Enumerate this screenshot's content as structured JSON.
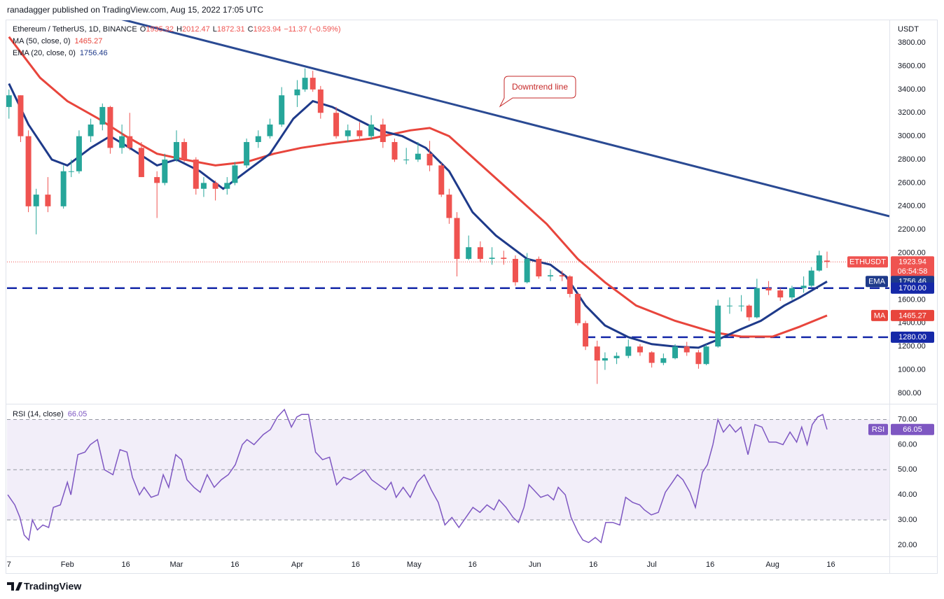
{
  "header": {
    "text": "ranadagger published on TradingView.com, Aug 15, 2022 17:05 UTC"
  },
  "footer": {
    "brand": "TradingView"
  },
  "chart_data": [
    {
      "type": "candlestick",
      "title": "Ethereum / TetherUS, 1D, BINANCE",
      "currency": "USDT",
      "legend_labels": {
        "open": "O",
        "high": "H",
        "low": "L",
        "close": "C"
      },
      "change": "−11.37 (−0.59%)",
      "symbol_tag": "ETHUSDT",
      "countdown": "06:54:58",
      "up_color": "#26a69a",
      "down_color": "#ef5350",
      "xlim": [
        16.5,
        243
      ],
      "ylim": [
        710,
        3998
      ],
      "grid": false,
      "yticks": [
        {
          "value": 800,
          "label": "800.00"
        },
        {
          "value": 1000,
          "label": "1000.00"
        },
        {
          "value": 1200,
          "label": "1200.00"
        },
        {
          "value": 1400,
          "label": "1400.00"
        },
        {
          "value": 1600,
          "label": "1600.00"
        },
        {
          "value": 1800,
          "label": "1800.00"
        },
        {
          "value": 2000,
          "label": "2000.00"
        },
        {
          "value": 2200,
          "label": "2200.00"
        },
        {
          "value": 2400,
          "label": "2400.00"
        },
        {
          "value": 2600,
          "label": "2600.00"
        },
        {
          "value": 2800,
          "label": "2800.00"
        },
        {
          "value": 3000,
          "label": "3000.00"
        },
        {
          "value": 3200,
          "label": "3200.00"
        },
        {
          "value": 3400,
          "label": "3400.00"
        },
        {
          "value": 3600,
          "label": "3600.00"
        },
        {
          "value": 3800,
          "label": "3800.00"
        }
      ],
      "x": [
        17,
        20,
        22,
        24,
        27,
        31,
        33,
        35,
        38,
        41,
        43,
        46,
        48,
        51,
        55,
        57,
        60,
        62,
        65,
        67,
        70,
        73,
        75,
        78,
        81,
        84,
        87,
        91,
        93,
        95,
        97,
        101,
        104,
        107,
        110,
        113,
        116,
        119,
        122,
        125,
        128,
        130,
        132,
        135,
        138,
        141,
        144,
        147,
        150,
        153,
        156,
        159,
        161,
        163,
        165,
        168,
        170,
        173,
        176,
        179,
        182,
        185,
        188,
        191,
        194,
        196,
        199,
        202,
        205,
        207,
        209,
        212,
        215,
        218,
        221,
        223,
        225,
        227
      ],
      "open": [
        3250,
        3350,
        3000,
        2400,
        2500,
        2400,
        2700,
        2700,
        3000,
        3100,
        3250,
        2900,
        3000,
        2900,
        2650,
        2600,
        2800,
        2950,
        2800,
        2550,
        2600,
        2550,
        2600,
        2750,
        2950,
        3000,
        3100,
        3350,
        3400,
        3500,
        3400,
        3200,
        3000,
        3050,
        3000,
        3100,
        2950,
        2800,
        2800,
        2850,
        2750,
        2500,
        2300,
        1950,
        2050,
        1950,
        1960,
        1950,
        1750,
        1950,
        1800,
        1810,
        1800,
        1650,
        1400,
        1200,
        1080,
        1100,
        1120,
        1200,
        1150,
        1060,
        1100,
        1200,
        1150,
        1050,
        1200,
        1550,
        1550,
        1550,
        1450,
        1700,
        1680,
        1620,
        1700,
        1720,
        1850,
        1935.32
      ],
      "high": [
        3400,
        3350,
        3050,
        2550,
        2650,
        2750,
        2800,
        3050,
        3150,
        3280,
        3260,
        3100,
        3200,
        2950,
        2700,
        2850,
        3050,
        2980,
        2820,
        2650,
        2620,
        2650,
        2780,
        2980,
        3050,
        3150,
        3420,
        3480,
        3580,
        3560,
        3430,
        3250,
        3100,
        3120,
        3180,
        3150,
        2980,
        2900,
        2950,
        2960,
        2770,
        2550,
        2350,
        2150,
        2100,
        2050,
        2020,
        1980,
        2000,
        1970,
        1860,
        1850,
        1810,
        1660,
        1420,
        1250,
        1150,
        1150,
        1260,
        1220,
        1160,
        1140,
        1220,
        1240,
        1170,
        1220,
        1600,
        1620,
        1640,
        1560,
        1780,
        1760,
        1700,
        1720,
        1800,
        1880,
        2020,
        2012.47
      ],
      "low": [
        3150,
        2950,
        2350,
        2160,
        2350,
        2380,
        2650,
        2680,
        2950,
        3050,
        2850,
        2850,
        2880,
        2650,
        2300,
        2580,
        2780,
        2780,
        2500,
        2480,
        2450,
        2500,
        2580,
        2730,
        2900,
        2980,
        3080,
        3250,
        3380,
        3380,
        3150,
        2980,
        2950,
        2980,
        2970,
        2900,
        2780,
        2760,
        2780,
        2700,
        2480,
        2250,
        1800,
        1940,
        1920,
        1900,
        1900,
        1720,
        1740,
        1780,
        1760,
        1760,
        1620,
        1380,
        1170,
        880,
        1000,
        1050,
        1100,
        1120,
        1020,
        1040,
        1090,
        1120,
        1010,
        1040,
        1190,
        1480,
        1500,
        1420,
        1440,
        1640,
        1590,
        1600,
        1660,
        1700,
        1840,
        1872.31
      ],
      "close": [
        3350,
        3000,
        2400,
        2500,
        2400,
        2700,
        2700,
        3000,
        3100,
        3250,
        2900,
        3000,
        2900,
        2650,
        2600,
        2800,
        2950,
        2800,
        2550,
        2600,
        2550,
        2600,
        2750,
        2950,
        3000,
        3100,
        3350,
        3400,
        3500,
        3400,
        3200,
        3000,
        3050,
        3000,
        3100,
        2950,
        2800,
        2800,
        2850,
        2750,
        2500,
        2300,
        1950,
        2050,
        1950,
        1960,
        1950,
        1750,
        1950,
        1800,
        1810,
        1800,
        1650,
        1400,
        1200,
        1080,
        1100,
        1120,
        1200,
        1150,
        1060,
        1100,
        1200,
        1150,
        1050,
        1200,
        1550,
        1550,
        1550,
        1450,
        1700,
        1680,
        1620,
        1700,
        1720,
        1850,
        1980,
        1923.94
      ],
      "series": [
        {
          "name": "MA (50, close, 0)",
          "tag": "MA",
          "color": "#e8453c",
          "x": [
            17,
            25,
            32,
            40,
            47,
            55,
            62,
            70,
            78,
            85,
            92,
            100,
            110,
            120,
            125,
            130,
            135,
            145,
            155,
            163,
            170,
            178,
            188,
            198,
            205,
            213,
            220,
            227
          ],
          "values": [
            3850,
            3500,
            3300,
            3150,
            3000,
            2850,
            2800,
            2750,
            2780,
            2850,
            2900,
            2940,
            2980,
            3050,
            3070,
            3000,
            2850,
            2550,
            2250,
            1950,
            1750,
            1550,
            1420,
            1320,
            1285,
            1285,
            1370,
            1465.27
          ]
        },
        {
          "name": "EMA (20, close, 0)",
          "tag": "EMA",
          "color": "#1e3a8a",
          "x": [
            17,
            22,
            28,
            32,
            38,
            43,
            48,
            55,
            60,
            66,
            72,
            78,
            84,
            90,
            95,
            100,
            106,
            112,
            118,
            124,
            130,
            136,
            142,
            150,
            156,
            160,
            165,
            170,
            176,
            182,
            188,
            194,
            199,
            205,
            210,
            216,
            220,
            227
          ],
          "values": [
            3450,
            3100,
            2800,
            2750,
            2900,
            3000,
            2900,
            2750,
            2800,
            2700,
            2550,
            2700,
            2850,
            3150,
            3300,
            3250,
            3150,
            3050,
            3000,
            2900,
            2700,
            2350,
            2150,
            1950,
            1900,
            1800,
            1550,
            1380,
            1280,
            1220,
            1200,
            1190,
            1260,
            1350,
            1420,
            1550,
            1620,
            1756.46
          ]
        }
      ],
      "trendline": {
        "label": "Downtrend line",
        "color": "#2a4a93",
        "x": [
          46,
          243
        ],
        "values": [
          4000,
          2315
        ]
      },
      "levels": [
        {
          "value": 1700,
          "label": "1700.00",
          "x": [
            16.5,
            243
          ]
        },
        {
          "value": 1280,
          "label": "1280.00",
          "x": [
            165,
            243
          ]
        }
      ],
      "level_color": "#1528a8"
    },
    {
      "type": "line",
      "title": "RSI (14, close)",
      "tag": "RSI",
      "color": "#7e57c2",
      "xlim": [
        16.5,
        243
      ],
      "ylim": [
        15.5,
        76
      ],
      "yticks": [
        {
          "value": 20,
          "label": "20.00"
        },
        {
          "value": 30,
          "label": "30.00"
        },
        {
          "value": 40,
          "label": "40.00"
        },
        {
          "value": 50,
          "label": "50.00"
        },
        {
          "value": 60,
          "label": "60.00"
        },
        {
          "value": 70,
          "label": "70.00"
        }
      ],
      "band": [
        30,
        70
      ],
      "levels": [
        30,
        50,
        70
      ],
      "xticks": [
        {
          "value": 17,
          "label": "7"
        },
        {
          "value": 32,
          "label": "Feb"
        },
        {
          "value": 47,
          "label": "16"
        },
        {
          "value": 60,
          "label": "Mar"
        },
        {
          "value": 75,
          "label": "16"
        },
        {
          "value": 91,
          "label": "Apr"
        },
        {
          "value": 106,
          "label": "16"
        },
        {
          "value": 121,
          "label": "May"
        },
        {
          "value": 136,
          "label": "16"
        },
        {
          "value": 152,
          "label": "Jun"
        },
        {
          "value": 167,
          "label": "16"
        },
        {
          "value": 182,
          "label": "Jul"
        },
        {
          "value": 197,
          "label": "16"
        },
        {
          "value": 213,
          "label": "Aug"
        },
        {
          "value": 228,
          "label": "16"
        }
      ],
      "x": [
        16.7,
        18.5,
        19.8,
        20.9,
        22.1,
        23.0,
        24.3,
        25.7,
        27.2,
        28.4,
        30.2,
        32,
        32.9,
        34.7,
        36.5,
        37.9,
        39.7,
        41.5,
        43.7,
        45.5,
        47.3,
        48.7,
        50.5,
        51.7,
        53.5,
        55.3,
        56.6,
        58,
        59.8,
        61.3,
        62.7,
        64.5,
        66.1,
        67.9,
        69.7,
        71.5,
        73.3,
        75.1,
        76.9,
        78.1,
        79.9,
        82.3,
        84.1,
        85.9,
        87.7,
        89.5,
        90.9,
        92.1,
        93.9,
        95.7,
        97.5,
        99.3,
        101.1,
        102.9,
        104.7,
        106.5,
        108.3,
        110.1,
        111.9,
        113.7,
        115.1,
        116.4,
        118.2,
        120,
        121.8,
        123.6,
        125.4,
        127.2,
        128.9,
        130.7,
        132.5,
        134.3,
        136.1,
        137.9,
        139.7,
        141.5,
        142.8,
        144.6,
        146.4,
        147.8,
        149.2,
        150.5,
        151.7,
        153.5,
        155.3,
        156.8,
        158,
        159.8,
        161.3,
        163.1,
        164.3,
        165.8,
        167.5,
        169,
        170.2,
        172,
        173.8,
        175.3,
        177.1,
        178.9,
        180.1,
        181.9,
        183.7,
        185.5,
        187.3,
        188.6,
        190,
        191.8,
        193.2,
        195,
        196.3,
        197.7,
        199,
        200.4,
        202,
        203.5,
        204.9,
        206.7,
        208.5,
        210.3,
        212.1,
        213.9,
        215.7,
        217.5,
        219.2,
        220.5,
        221.9,
        223.2,
        224.6,
        225.9,
        226.6,
        227
      ],
      "values": [
        40,
        36,
        31,
        24,
        22,
        30,
        26,
        28,
        27,
        35,
        36,
        45,
        40,
        56,
        57,
        60,
        62,
        50,
        48,
        58,
        57,
        47,
        40,
        43,
        39,
        40,
        48,
        43,
        56,
        54,
        46,
        43,
        41,
        48,
        43,
        46,
        48,
        52,
        60,
        62,
        60,
        64,
        66,
        71,
        74,
        67,
        71,
        72,
        72,
        57,
        54,
        55,
        44,
        47,
        46,
        48,
        50,
        46,
        44,
        42,
        45,
        39,
        43,
        39,
        45,
        48,
        42,
        37,
        28,
        31,
        27,
        31,
        35,
        33,
        36,
        34,
        38,
        35,
        31,
        29,
        35,
        44,
        42,
        39,
        40,
        38,
        43,
        40,
        31,
        25,
        22,
        21,
        23,
        21,
        29,
        29,
        28,
        39,
        37,
        36,
        34,
        32,
        33,
        41,
        45,
        48,
        46,
        41,
        35,
        49,
        52,
        60,
        70,
        65,
        68,
        65,
        67,
        56,
        68,
        67,
        61,
        61,
        60,
        65,
        61,
        67,
        60,
        68,
        71,
        72,
        68,
        66.05
      ]
    }
  ]
}
